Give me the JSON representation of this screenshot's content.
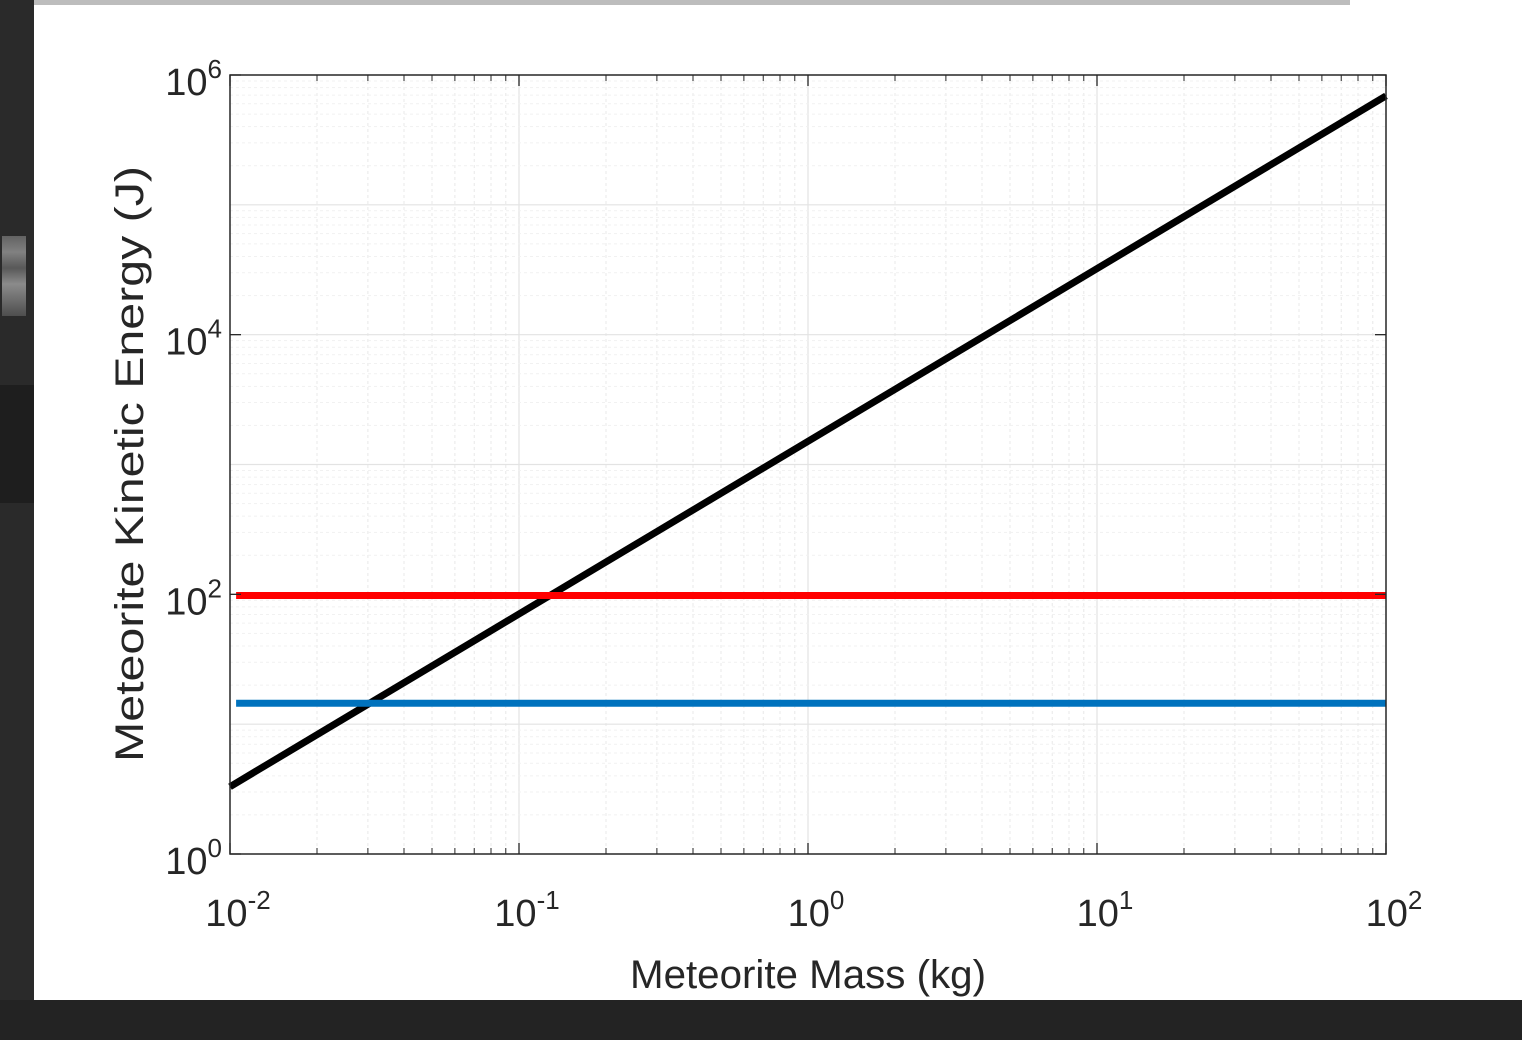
{
  "chart_data": {
    "type": "line",
    "xlabel": "Meteorite Mass (kg)",
    "ylabel": "Meteorite Kinetic Energy (J)",
    "xscale": "log",
    "yscale": "log",
    "xlim": [
      0.01,
      100
    ],
    "ylim": [
      1,
      1000000
    ],
    "grid": "on (major and minor)",
    "x_ticks": [
      {
        "base": "10",
        "exp": "-2"
      },
      {
        "base": "10",
        "exp": "-1"
      },
      {
        "base": "10",
        "exp": "0"
      },
      {
        "base": "10",
        "exp": "1"
      },
      {
        "base": "10",
        "exp": "2"
      }
    ],
    "y_ticks": [
      {
        "base": "10",
        "exp": "0"
      },
      {
        "base": "10",
        "exp": "2"
      },
      {
        "base": "10",
        "exp": "4"
      },
      {
        "base": "10",
        "exp": "6"
      }
    ],
    "series": [
      {
        "color": "#000000",
        "x": [
          0.01,
          100
        ],
        "y": [
          3.3,
          690000
        ]
      },
      {
        "color": "#ff0000",
        "x": [
          0.0105,
          100
        ],
        "y": [
          98,
          98
        ]
      },
      {
        "color": "#0072bd",
        "x": [
          0.0105,
          100
        ],
        "y": [
          14.5,
          14.5
        ]
      }
    ]
  }
}
